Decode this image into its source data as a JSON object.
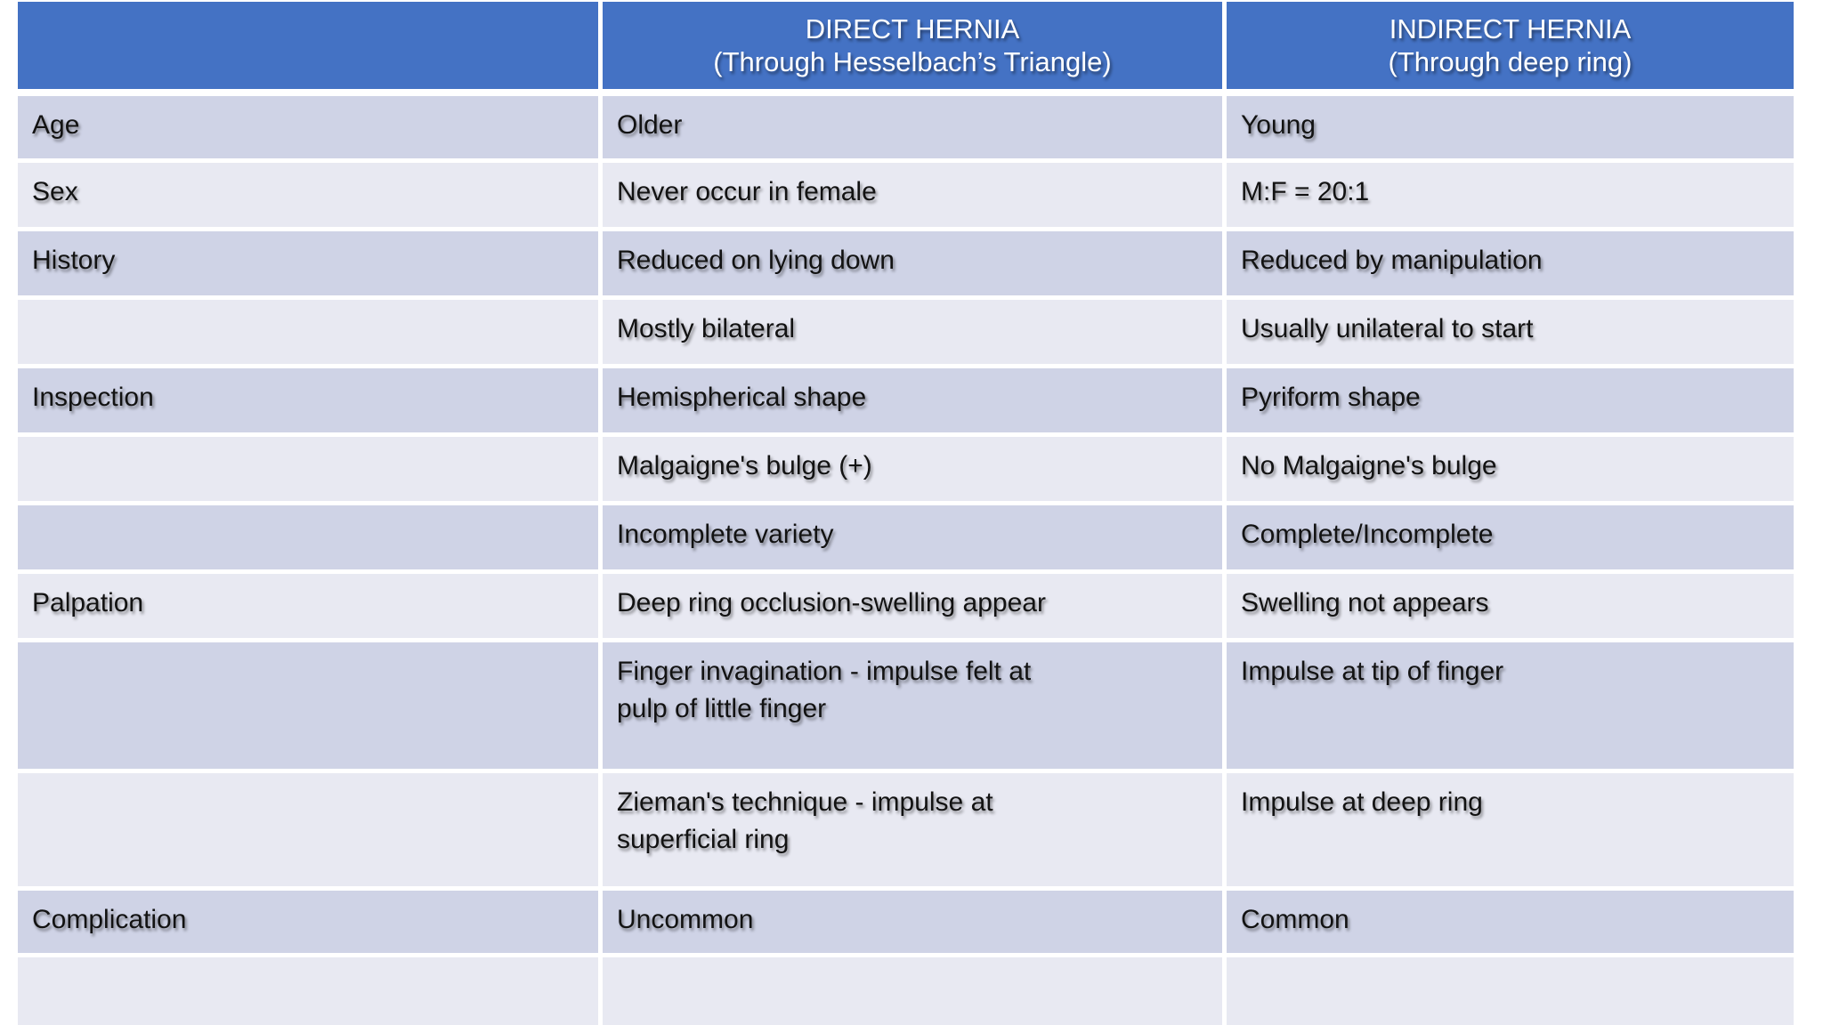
{
  "table": {
    "header": {
      "empty": "",
      "direct": "DIRECT HERNIA\n(Through Hesselbach’s Triangle)",
      "indirect": "INDIRECT HERNIA\n(Through deep ring)"
    },
    "rows": [
      {
        "label": "Age",
        "direct": "Older",
        "indirect": "Young"
      },
      {
        "label": "Sex",
        "direct": "Never occur in female",
        "indirect": "M:F = 20:1"
      },
      {
        "label": "History",
        "direct": "Reduced on lying down",
        "indirect": "Reduced by manipulation"
      },
      {
        "label": "",
        "direct": "Mostly bilateral",
        "indirect": "Usually unilateral to start"
      },
      {
        "label": "Inspection",
        "direct": "Hemispherical shape",
        "indirect": "Pyriform shape"
      },
      {
        "label": "",
        "direct": "Malgaigne's bulge (+)",
        "indirect": "No Malgaigne's bulge"
      },
      {
        "label": "",
        "direct": "Incomplete variety",
        "indirect": "Complete/Incomplete"
      },
      {
        "label": "Palpation",
        "direct": "Deep ring occlusion-swelling appear",
        "indirect": "Swelling not appears"
      },
      {
        "label": "",
        "direct": "Finger invagination - impulse felt at\npulp of little finger",
        "indirect": "Impulse at tip of finger"
      },
      {
        "label": "",
        "direct": "Zieman's technique - impulse at\nsuperficial ring",
        "indirect": "Impulse at deep ring"
      },
      {
        "label": "Complication",
        "direct": "Uncommon",
        "indirect": "Common"
      },
      {
        "label": "",
        "direct": "",
        "indirect": ""
      }
    ],
    "colors": {
      "header_bg": "#4472C4",
      "header_text": "#FFFFFF",
      "row_dark": "#CFD3E6",
      "row_light": "#E8E9F2",
      "body_text": "#121212"
    }
  }
}
